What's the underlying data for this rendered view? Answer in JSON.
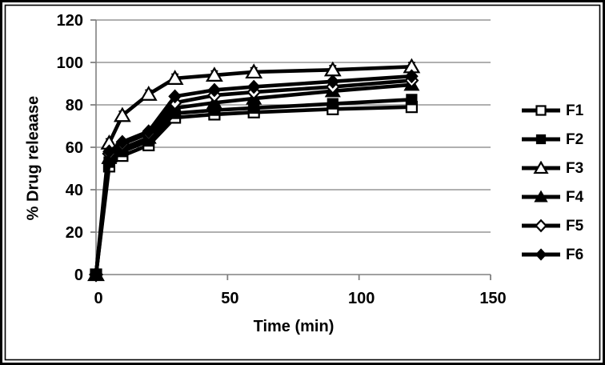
{
  "chart_data": {
    "type": "line",
    "title": "",
    "xlabel": "Time (min)",
    "ylabel": "% Drug releaase",
    "xlim": [
      0,
      150
    ],
    "ylim": [
      0,
      120
    ],
    "xticks": [
      0,
      50,
      100,
      150
    ],
    "yticks": [
      0,
      20,
      40,
      60,
      80,
      100,
      120
    ],
    "grid": true,
    "legend_position": "right",
    "x": [
      0,
      5,
      10,
      20,
      30,
      45,
      60,
      90,
      120
    ],
    "series": [
      {
        "name": "F1",
        "marker": "square-open",
        "values": [
          0,
          51,
          56,
          61,
          74,
          75.5,
          76.5,
          78,
          79
        ]
      },
      {
        "name": "F2",
        "marker": "square-filled",
        "values": [
          0,
          53,
          58,
          63,
          76,
          77.5,
          78.5,
          80.5,
          82.5
        ]
      },
      {
        "name": "F3",
        "marker": "triangle-open",
        "values": [
          0,
          62,
          75,
          85,
          92.5,
          94,
          95.5,
          96.5,
          98
        ],
        "error_bar": 2
      },
      {
        "name": "F4",
        "marker": "triangle-filled",
        "values": [
          0,
          55,
          59.5,
          64.5,
          78.5,
          81,
          83,
          86.5,
          89.5
        ]
      },
      {
        "name": "F5",
        "marker": "diamond-open",
        "values": [
          0,
          57,
          61.5,
          66.5,
          81,
          84.5,
          86,
          88.5,
          91.5
        ]
      },
      {
        "name": "F6",
        "marker": "diamond-filled",
        "values": [
          0,
          58,
          62.5,
          67.5,
          84,
          87,
          88.5,
          91,
          93.5
        ]
      }
    ],
    "colors": {
      "series": "#000000",
      "grid": "#808080",
      "axis": "#808080",
      "text": "#000000",
      "background": "#ffffff",
      "frame": "#000000"
    }
  }
}
